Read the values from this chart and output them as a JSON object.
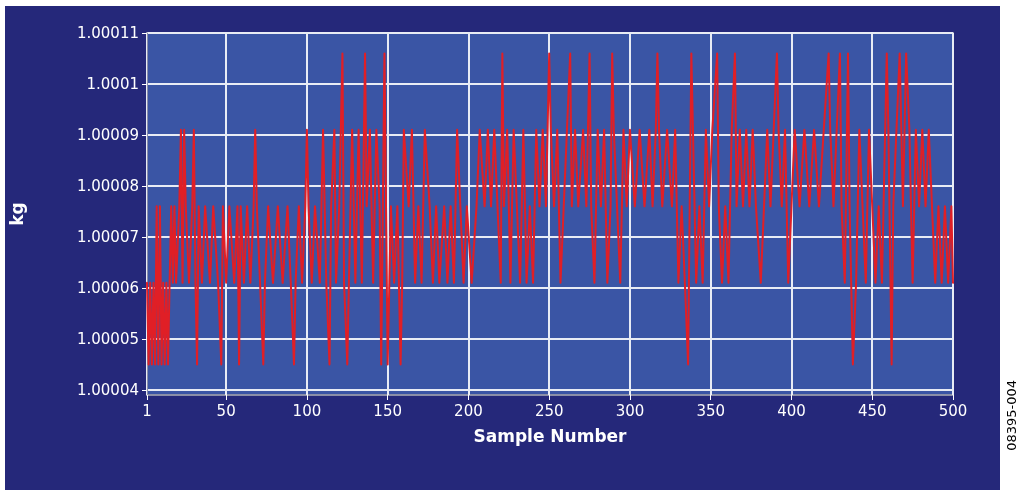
{
  "chart_data": {
    "type": "line",
    "xlabel": "Sample Number",
    "ylabel": "kg",
    "annotations": [
      "08395-004"
    ],
    "xlim": [
      1,
      500
    ],
    "xticks": [
      1,
      50,
      100,
      150,
      200,
      250,
      300,
      350,
      400,
      450,
      500
    ],
    "ylim": [
      1.000039,
      1.00011
    ],
    "yticks": [
      1.00004,
      1.00005,
      1.00006,
      1.00007,
      1.00008,
      1.00009,
      1.0001,
      1.00011
    ],
    "grid": true,
    "marker": "none",
    "line_style": "solid",
    "series": [
      {
        "color": "#e01f26",
        "x": [
          1,
          2,
          3,
          4,
          5,
          6,
          7,
          8,
          9,
          10,
          11,
          12,
          13,
          14,
          15,
          16,
          17,
          18,
          19,
          21,
          22,
          23,
          24,
          25,
          27,
          29,
          30,
          31,
          32,
          33,
          35,
          37,
          40,
          42,
          45,
          47,
          48,
          50,
          52,
          55,
          57,
          58,
          59,
          61,
          63,
          65,
          67,
          68,
          69,
          71,
          73,
          74,
          76,
          79,
          82,
          85,
          88,
          90,
          92,
          93,
          95,
          97,
          99,
          100,
          101,
          103,
          105,
          108,
          110,
          112,
          114,
          115,
          117,
          118,
          120,
          122,
          123,
          125,
          126,
          128,
          130,
          132,
          134,
          136,
          137,
          139,
          141,
          143,
          145,
          146,
          148,
          150,
          152,
          154,
          156,
          158,
          159,
          160,
          163,
          165,
          167,
          169,
          171,
          173,
          176,
          178,
          180,
          182,
          185,
          187,
          189,
          191,
          193,
          195,
          197,
          199,
          202,
          205,
          207,
          210,
          212,
          214,
          216,
          218,
          220,
          221,
          222,
          224,
          226,
          228,
          230,
          232,
          234,
          236,
          238,
          240,
          242,
          244,
          246,
          248,
          250,
          251,
          253,
          255,
          257,
          259,
          261,
          263,
          264,
          266,
          268,
          271,
          273,
          275,
          276,
          278,
          280,
          282,
          284,
          286,
          288,
          289,
          290,
          292,
          294,
          296,
          298,
          300,
          303,
          306,
          309,
          312,
          314,
          316,
          317,
          318,
          320,
          323,
          326,
          328,
          330,
          332,
          334,
          336,
          337,
          338,
          339,
          341,
          343,
          345,
          347,
          349,
          351,
          354,
          355,
          357,
          359,
          361,
          363,
          365,
          366,
          368,
          370,
          372,
          374,
          376,
          378,
          381,
          383,
          385,
          387,
          389,
          391,
          392,
          394,
          396,
          398,
          400,
          402,
          405,
          408,
          411,
          414,
          417,
          420,
          423,
          424,
          426,
          428,
          430,
          431,
          433,
          435,
          436,
          438,
          440,
          442,
          444,
          446,
          448,
          450,
          452,
          454,
          456,
          459,
          460,
          462,
          463,
          465,
          467,
          469,
          471,
          473,
          475,
          477,
          479,
          481,
          483,
          485,
          487,
          489,
          491,
          493,
          495,
          497,
          499,
          500
        ],
        "values": [
          1.000061,
          1.000045,
          1.000061,
          1.000045,
          1.000061,
          1.000045,
          1.000076,
          1.000045,
          1.000076,
          1.000045,
          1.000061,
          1.000045,
          1.000061,
          1.000045,
          1.000061,
          1.000076,
          1.000061,
          1.000076,
          1.000061,
          1.000076,
          1.000091,
          1.000061,
          1.000091,
          1.000076,
          1.000061,
          1.000076,
          1.000091,
          1.000061,
          1.000045,
          1.000076,
          1.000061,
          1.000076,
          1.000061,
          1.000076,
          1.000061,
          1.000045,
          1.000076,
          1.000061,
          1.000076,
          1.000061,
          1.000076,
          1.000045,
          1.000076,
          1.000061,
          1.000076,
          1.000061,
          1.000076,
          1.000091,
          1.000076,
          1.000061,
          1.000045,
          1.000061,
          1.000076,
          1.000061,
          1.000076,
          1.000061,
          1.000076,
          1.000061,
          1.000045,
          1.000061,
          1.000076,
          1.000061,
          1.000076,
          1.000091,
          1.000076,
          1.000061,
          1.000076,
          1.000061,
          1.000091,
          1.000061,
          1.000045,
          1.000076,
          1.000091,
          1.000061,
          1.000076,
          1.000106,
          1.000061,
          1.000045,
          1.000061,
          1.000091,
          1.000061,
          1.000091,
          1.000061,
          1.000106,
          1.000076,
          1.000091,
          1.000061,
          1.000091,
          1.000076,
          1.000045,
          1.000106,
          1.000045,
          1.000076,
          1.000061,
          1.000076,
          1.000045,
          1.000061,
          1.000091,
          1.000076,
          1.000091,
          1.000061,
          1.000076,
          1.000061,
          1.000091,
          1.000076,
          1.000061,
          1.000076,
          1.000061,
          1.000076,
          1.000061,
          1.000076,
          1.000061,
          1.000091,
          1.000076,
          1.000061,
          1.000076,
          1.000061,
          1.000076,
          1.000091,
          1.000076,
          1.000091,
          1.000076,
          1.000091,
          1.000076,
          1.000061,
          1.000106,
          1.000076,
          1.000091,
          1.000061,
          1.000091,
          1.000076,
          1.000061,
          1.000091,
          1.000061,
          1.000076,
          1.000061,
          1.000091,
          1.000076,
          1.000091,
          1.000076,
          1.000106,
          1.000091,
          1.000076,
          1.000091,
          1.000061,
          1.000076,
          1.000091,
          1.000106,
          1.000076,
          1.000091,
          1.000076,
          1.000091,
          1.000076,
          1.000106,
          1.000076,
          1.000061,
          1.000091,
          1.000076,
          1.000091,
          1.000061,
          1.000076,
          1.000106,
          1.000091,
          1.000076,
          1.000061,
          1.000091,
          1.000076,
          1.000091,
          1.000076,
          1.000091,
          1.000076,
          1.000091,
          1.000076,
          1.000091,
          1.000106,
          1.000091,
          1.000076,
          1.000091,
          1.000076,
          1.000091,
          1.000061,
          1.000076,
          1.000061,
          1.000045,
          1.000076,
          1.000106,
          1.000091,
          1.000061,
          1.000076,
          1.000061,
          1.000091,
          1.000076,
          1.000091,
          1.000106,
          1.000076,
          1.000061,
          1.000076,
          1.000061,
          1.000091,
          1.000106,
          1.000076,
          1.000091,
          1.000076,
          1.000091,
          1.000076,
          1.000091,
          1.000076,
          1.000061,
          1.000076,
          1.000091,
          1.000076,
          1.000091,
          1.000106,
          1.000091,
          1.000076,
          1.000091,
          1.000061,
          1.000076,
          1.000091,
          1.000076,
          1.000091,
          1.000076,
          1.000091,
          1.000076,
          1.000091,
          1.000106,
          1.000091,
          1.000076,
          1.000091,
          1.000106,
          1.000076,
          1.000061,
          1.000106,
          1.000076,
          1.000045,
          1.000061,
          1.000091,
          1.000076,
          1.000061,
          1.000091,
          1.000076,
          1.000061,
          1.000076,
          1.000061,
          1.000106,
          1.000091,
          1.000045,
          1.000076,
          1.000091,
          1.000106,
          1.000076,
          1.000106,
          1.000091,
          1.000061,
          1.000091,
          1.000076,
          1.000091,
          1.000076,
          1.000091,
          1.000076,
          1.000061,
          1.000076,
          1.000061,
          1.000076,
          1.000061,
          1.000076,
          1.000061
        ]
      }
    ]
  }
}
